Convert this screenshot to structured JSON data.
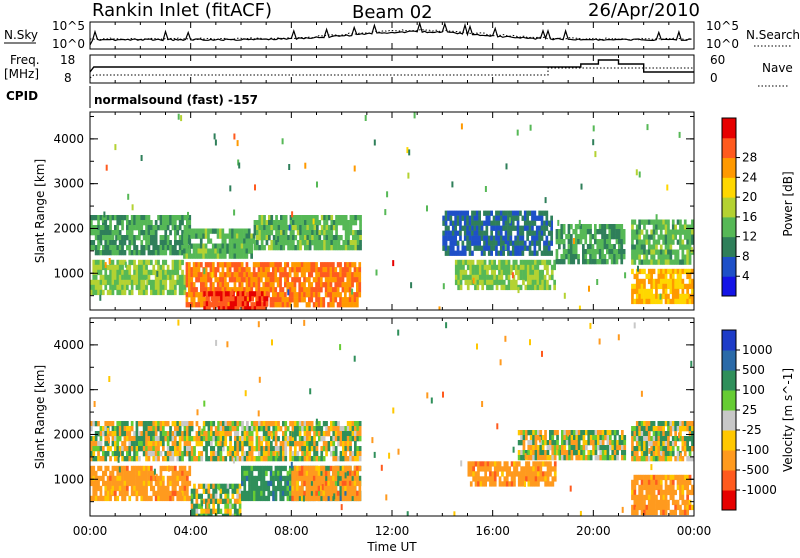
{
  "header": {
    "station": "Rankin Inlet (fitACF)",
    "beam": "Beam 02",
    "date": "26/Apr/2010"
  },
  "strips": {
    "nsky_label": "N.Sky",
    "nsky_ticks": [
      "10^5",
      "10^0"
    ],
    "nsearch_label": "N.Search",
    "freq_label": "Freq.",
    "freq_unit": "[MHz]",
    "freq_ticks": [
      "18",
      "8"
    ],
    "nave_label": "Nave",
    "nave_ticks": [
      "60",
      "0"
    ],
    "cpid_label": "CPID",
    "cpid_value": "normalsound (fast) -157"
  },
  "axes": {
    "ylabel": "Slant Range [km]",
    "xlabel": "Time UT",
    "xticks": [
      "00:00",
      "04:00",
      "08:00",
      "12:00",
      "16:00",
      "20:00",
      "00:00"
    ],
    "yticks": [
      "1000",
      "2000",
      "3000",
      "4000"
    ]
  },
  "chart_data": [
    {
      "type": "heatmap",
      "title": "",
      "xlabel": "Time UT",
      "ylabel": "Slant Range [km]",
      "xlim": [
        0,
        24
      ],
      "ylim": [
        180,
        4600
      ],
      "colorbar": {
        "label": "Power [dB]",
        "ticks": [
          "4",
          "8",
          "12",
          "16",
          "20",
          "24",
          "28"
        ],
        "colors": [
          "#1414e6",
          "#1e50c8",
          "#2f7f5a",
          "#56b856",
          "#b4d232",
          "#ffd700",
          "#ff9900",
          "#ff5a1e",
          "#e60000"
        ]
      },
      "regions": [
        {
          "t0": 0.0,
          "t1": 4.0,
          "r0": 1500,
          "r1": 2300,
          "value": 10
        },
        {
          "t0": 3.7,
          "t1": 6.5,
          "r0": 1400,
          "r1": 2000,
          "value": 12
        },
        {
          "t0": 6.5,
          "t1": 10.7,
          "r0": 1600,
          "r1": 2300,
          "value": 12
        },
        {
          "t0": 0.0,
          "t1": 3.8,
          "r0": 600,
          "r1": 1300,
          "value": 14
        },
        {
          "t0": 3.8,
          "t1": 10.7,
          "r0": 250,
          "r1": 1250,
          "value": 26
        },
        {
          "t0": 4.5,
          "t1": 7.0,
          "r0": 200,
          "r1": 600,
          "value": 30
        },
        {
          "t0": 14.0,
          "t1": 18.3,
          "r0": 1500,
          "r1": 2400,
          "value": 6
        },
        {
          "t0": 14.5,
          "t1": 18.5,
          "r0": 700,
          "r1": 1300,
          "value": 14
        },
        {
          "t0": 18.5,
          "t1": 21.2,
          "r0": 1300,
          "r1": 2100,
          "value": 10
        },
        {
          "t0": 21.5,
          "t1": 24.0,
          "r0": 1200,
          "r1": 2200,
          "value": 12
        },
        {
          "t0": 21.5,
          "t1": 24.0,
          "r0": 400,
          "r1": 1100,
          "value": 22
        }
      ]
    },
    {
      "type": "heatmap",
      "title": "",
      "xlabel": "Time UT",
      "ylabel": "Slant Range [km]",
      "xlim": [
        0,
        24
      ],
      "ylim": [
        180,
        4600
      ],
      "colorbar": {
        "label": "Velocity [m s^-1]",
        "ticks": [
          "1000",
          "500",
          "100",
          "25",
          "-25",
          "-100",
          "-500",
          "-1000"
        ],
        "colors": [
          "#1e3cc8",
          "#2a6aa8",
          "#2f8f5a",
          "#66cc33",
          "#c8c8c8",
          "#ffc800",
          "#ff9a1e",
          "#ff5a1e",
          "#e60000"
        ]
      },
      "regions": [
        {
          "t0": 0.0,
          "t1": 10.7,
          "r0": 1500,
          "r1": 2300,
          "value": 0
        },
        {
          "t0": 0.0,
          "t1": 4.0,
          "r0": 600,
          "r1": 1300,
          "value": -300
        },
        {
          "t0": 4.0,
          "t1": 6.0,
          "r0": 200,
          "r1": 900,
          "value": 100
        },
        {
          "t0": 6.0,
          "t1": 10.7,
          "r0": 600,
          "r1": 1300,
          "value": 300
        },
        {
          "t0": 8.0,
          "t1": 10.7,
          "r0": 600,
          "r1": 1300,
          "value": -300
        },
        {
          "t0": 15.0,
          "t1": 18.5,
          "r0": 900,
          "r1": 1400,
          "value": -300
        },
        {
          "t0": 17.0,
          "t1": 21.2,
          "r0": 1500,
          "r1": 2100,
          "value": 0
        },
        {
          "t0": 21.5,
          "t1": 24.0,
          "r0": 1500,
          "r1": 2300,
          "value": 0
        },
        {
          "t0": 21.5,
          "t1": 24.0,
          "r0": 300,
          "r1": 1100,
          "value": -300
        }
      ]
    }
  ]
}
